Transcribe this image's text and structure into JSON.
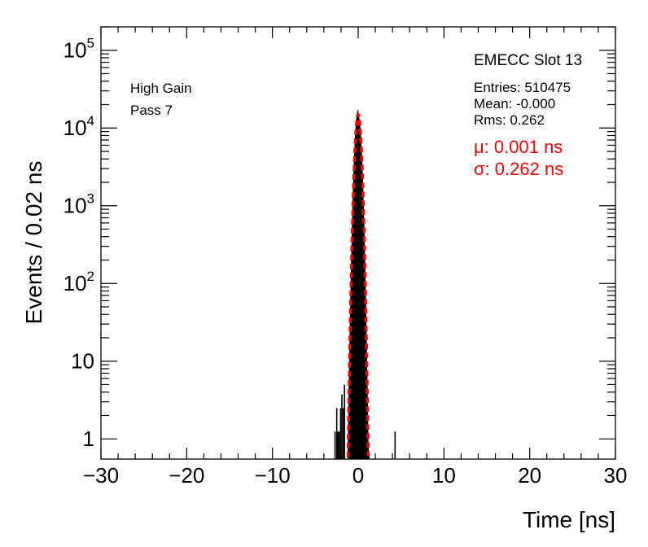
{
  "chart_data": {
    "type": "histogram",
    "title": "EMECC Slot 13",
    "xlabel": "Time [ns]",
    "ylabel": "Events / 0.02 ns",
    "xlim": [
      -30,
      30
    ],
    "ylog": true,
    "ylim": [
      0.55,
      200000
    ],
    "x_ticks": [
      -30,
      -20,
      -10,
      0,
      10,
      20,
      30
    ],
    "y_ticks": [
      {
        "value": 1,
        "base": "1",
        "exp": ""
      },
      {
        "value": 10,
        "base": "10",
        "exp": ""
      },
      {
        "value": 100,
        "base": "10",
        "exp": "2"
      },
      {
        "value": 1000,
        "base": "10",
        "exp": "3"
      },
      {
        "value": 10000,
        "base": "10",
        "exp": "4"
      },
      {
        "value": 100000,
        "base": "10",
        "exp": "5"
      }
    ],
    "labels": {
      "gain": "High Gain",
      "pass": "Pass 7",
      "entries": "Entries: 510475",
      "mean": "Mean: -0.000",
      "rms": "Rms: 0.262",
      "fit_mu": "μ: 0.001 ns",
      "fit_sigma": "σ: 0.262 ns"
    },
    "stats": {
      "entries": 510475,
      "mean": -0.0,
      "rms": 0.262
    },
    "fit": {
      "function": "gaussian",
      "mu": 0.001,
      "sigma": 0.262,
      "amplitude": 15000,
      "color": "#ff0000"
    },
    "spikes": [
      {
        "x": -2.7,
        "y": 1
      },
      {
        "x": -2.5,
        "y": 2
      },
      {
        "x": -2.35,
        "y": 1
      },
      {
        "x": -2.2,
        "y": 1
      },
      {
        "x": -2.05,
        "y": 2
      },
      {
        "x": -1.9,
        "y": 3
      },
      {
        "x": -1.75,
        "y": 2
      },
      {
        "x": -1.6,
        "y": 4
      },
      {
        "x": 4.3,
        "y": 1
      }
    ],
    "colors": {
      "histogram": "#000000",
      "fit": "#ff0000"
    }
  }
}
